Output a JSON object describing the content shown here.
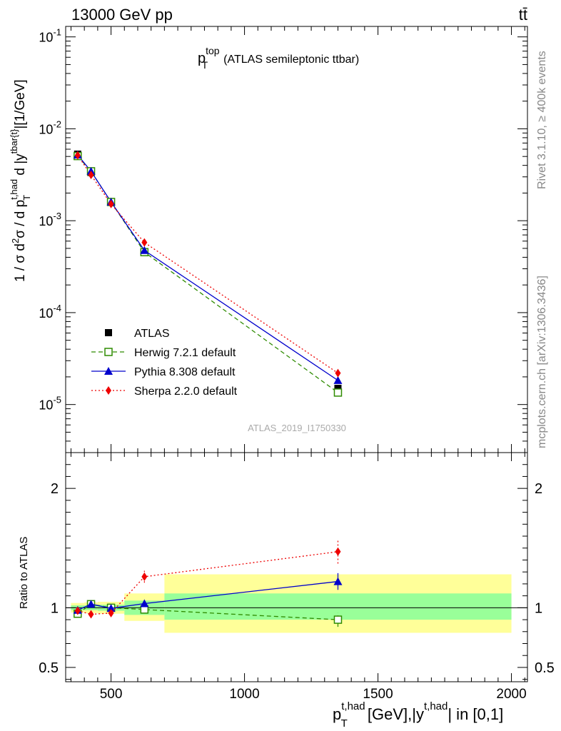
{
  "header": {
    "process": "13000 GeV pp",
    "final_state": "tt̄"
  },
  "side_labels": {
    "rivet": "Rivet 3.1.10, ≥ 400k events",
    "mcplots": "mcplots.cern.ch [arXiv:1306.3436]"
  },
  "analysis_id": "ATLAS_2019_I1750330",
  "colors": {
    "data": "#000000",
    "herwig": "#2e8b00",
    "pythia": "#0000cc",
    "sherpa": "#ee0000",
    "band_inner": "#99ff99",
    "band_outer": "#ffff99"
  },
  "chart_data": [
    {
      "type": "line",
      "panel": "main",
      "title_main": "p",
      "title_sup": "top",
      "title_sub": "T",
      "title_rest": "(ATLAS semileptonic ttbar)",
      "ylabel": "1 / σ d²σ / d p_T^{t,had} d |y^{tbar{t}}|[1/GeV]",
      "yscale": "log",
      "ylim": [
        3e-06,
        0.13
      ],
      "xlim": [
        330,
        2060
      ],
      "y_tick_labels": [
        "10^-5",
        "10^-4",
        "10^-3",
        "10^-2",
        "10^-1"
      ],
      "legend_position": "bottom-left",
      "x": [
        375,
        425,
        500,
        625,
        1350
      ],
      "series": [
        {
          "name": "ATLAS",
          "marker": "square",
          "values": [
            0.0053,
            0.00335,
            0.0016,
            0.00046,
            1.5e-05
          ]
        },
        {
          "name": "Herwig 7.2.1 default",
          "marker": "open-square",
          "style": "dashed",
          "values": [
            0.00505,
            0.00345,
            0.0016,
            0.000455,
            1.35e-05
          ]
        },
        {
          "name": "Pythia 8.308 default",
          "marker": "triangle",
          "style": "solid",
          "values": [
            0.0052,
            0.00345,
            0.0016,
            0.000475,
            1.83e-05
          ]
        },
        {
          "name": "Sherpa 2.2.0 default",
          "marker": "diamond",
          "style": "dotted",
          "values": [
            0.00515,
            0.00315,
            0.00152,
            0.00058,
            2.2e-05
          ]
        }
      ]
    },
    {
      "type": "line",
      "panel": "ratio",
      "ylabel": "Ratio to ATLAS",
      "xlabel_main": "p",
      "xlabel_sup": "t,had",
      "xlabel_sub": "T",
      "xlabel_rest": " [GeV],|y",
      "xlabel_sup2": "t,had",
      "xlabel_end": "| in [0,1]",
      "ylim": [
        0.38,
        2.3
      ],
      "xlim": [
        330,
        2060
      ],
      "x_tick_labels": [
        "500",
        "1000",
        "1500",
        "2000"
      ],
      "y_tick_labels": [
        "0.5",
        "1",
        "2"
      ],
      "bins": [
        {
          "x0": 350,
          "x1": 400,
          "inner": [
            0.98,
            1.02
          ],
          "outer": [
            0.96,
            1.04
          ]
        },
        {
          "x0": 400,
          "x1": 450,
          "inner": [
            0.98,
            1.02
          ],
          "outer": [
            0.955,
            1.045
          ]
        },
        {
          "x0": 450,
          "x1": 550,
          "inner": [
            0.975,
            1.025
          ],
          "outer": [
            0.95,
            1.05
          ]
        },
        {
          "x0": 550,
          "x1": 700,
          "inner": [
            0.94,
            1.06
          ],
          "outer": [
            0.89,
            1.12
          ]
        },
        {
          "x0": 700,
          "x1": 2000,
          "inner": [
            0.9,
            1.12
          ],
          "outer": [
            0.79,
            1.28
          ]
        }
      ],
      "x": [
        375,
        425,
        500,
        625,
        1350
      ],
      "series": [
        {
          "name": "Herwig 7.2.1 default",
          "values": [
            0.95,
            1.03,
            1.0,
            0.985,
            0.9
          ],
          "errors": [
            0.015,
            0.015,
            0.015,
            0.03,
            0.06
          ]
        },
        {
          "name": "Pythia 8.308 default",
          "values": [
            0.98,
            1.03,
            0.995,
            1.035,
            1.22
          ],
          "errors": [
            0.015,
            0.015,
            0.015,
            0.03,
            0.07
          ]
        },
        {
          "name": "Sherpa 2.2.0 default",
          "values": [
            0.975,
            0.945,
            0.955,
            1.26,
            1.47
          ],
          "errors": [
            0.02,
            0.02,
            0.02,
            0.05,
            0.1
          ]
        }
      ]
    }
  ]
}
